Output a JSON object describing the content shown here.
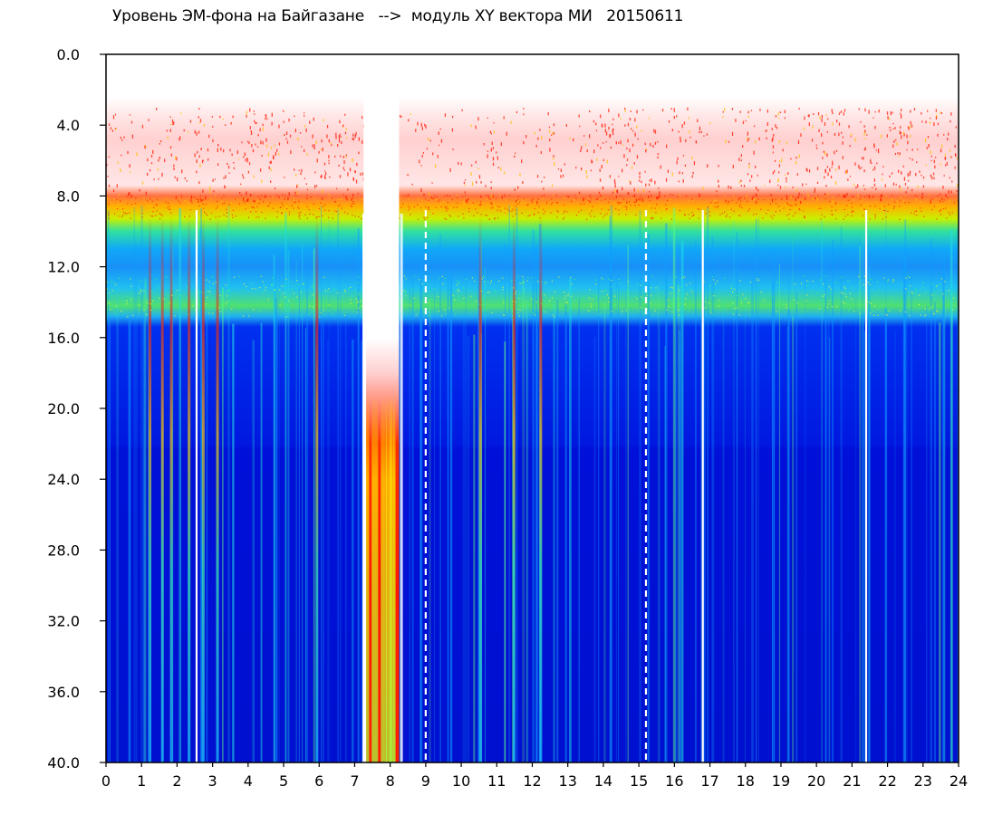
{
  "chart_data": {
    "type": "heatmap",
    "title": "Уровень ЭМ-фона на Байгазане   -->  модуль XY вектора МИ   20150611",
    "xlabel": "",
    "ylabel": "",
    "xlim": [
      0,
      24
    ],
    "ylim": [
      0,
      40
    ],
    "y_inverted": true,
    "x_ticks": [
      "0",
      "1",
      "2",
      "3",
      "4",
      "5",
      "6",
      "7",
      "8",
      "9",
      "10",
      "11",
      "12",
      "13",
      "14",
      "15",
      "16",
      "17",
      "18",
      "19",
      "20",
      "21",
      "22",
      "23",
      "24"
    ],
    "y_ticks": [
      "0.0",
      "4.0",
      "8.0",
      "12.0",
      "16.0",
      "20.0",
      "24.0",
      "28.0",
      "32.0",
      "36.0",
      "40.0"
    ],
    "grid": false,
    "colormap": [
      "#0000ff",
      "#0050ff",
      "#00c8ff",
      "#00ff80",
      "#ffff00",
      "#ff0000"
    ],
    "bands": [
      {
        "y": [
          3,
          8
        ],
        "level": "red scattered"
      },
      {
        "y": [
          8,
          9
        ],
        "level": "red-yellow"
      },
      {
        "y": [
          9,
          15
        ],
        "level": "green-cyan-blue"
      },
      {
        "y": [
          15,
          40
        ],
        "level": "blue"
      }
    ],
    "gaps": [
      2.55,
      9.0,
      15.2,
      16.8,
      21.4
    ],
    "disturbance_x": [
      7.25,
      8.25
    ]
  }
}
